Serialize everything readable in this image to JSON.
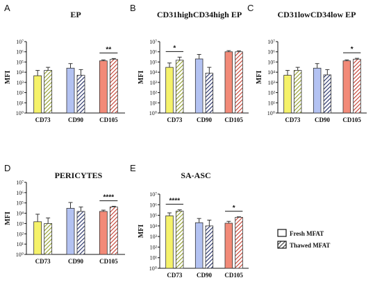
{
  "chart_data": [
    {
      "panel": "A",
      "title": "EP",
      "type": "bar",
      "log_scale": true,
      "ylabel": "MFI",
      "ylim": [
        1,
        10000000
      ],
      "yticks": [
        "10^0",
        "10^1",
        "10^2",
        "10^3",
        "10^4",
        "10^5",
        "10^6",
        "10^7"
      ],
      "categories": [
        "CD73",
        "CD90",
        "CD105"
      ],
      "series": [
        {
          "name": "Fresh MFAT",
          "values": [
            4500,
            25000,
            130000
          ],
          "errors_upper": [
            15000,
            70000,
            160000
          ]
        },
        {
          "name": "Thawed MFAT",
          "values": [
            15000,
            5000,
            180000
          ],
          "errors_upper": [
            30000,
            18000,
            220000
          ]
        }
      ],
      "significance": [
        {
          "category": "CD105",
          "label": "**"
        }
      ]
    },
    {
      "panel": "B",
      "title": "CD31highCD34high EP",
      "type": "bar",
      "log_scale": true,
      "ylabel": "MFI",
      "ylim": [
        1,
        10000000
      ],
      "yticks": [
        "10^0",
        "10^1",
        "10^2",
        "10^3",
        "10^4",
        "10^5",
        "10^6",
        "10^7"
      ],
      "categories": [
        "CD73",
        "CD90",
        "CD105"
      ],
      "series": [
        {
          "name": "Fresh MFAT",
          "values": [
            30000,
            200000,
            1000000
          ],
          "errors_upper": [
            80000,
            550000,
            1300000
          ]
        },
        {
          "name": "Thawed MFAT",
          "values": [
            150000,
            8000,
            1000000
          ],
          "errors_upper": [
            300000,
            30000,
            1250000
          ]
        }
      ],
      "significance": [
        {
          "category": "CD73",
          "label": "*"
        }
      ]
    },
    {
      "panel": "C",
      "title": "CD31lowCD34low EP",
      "type": "bar",
      "log_scale": true,
      "ylabel": "MFI",
      "ylim": [
        1,
        10000000
      ],
      "yticks": [
        "10^0",
        "10^1",
        "10^2",
        "10^3",
        "10^4",
        "10^5",
        "10^6",
        "10^7"
      ],
      "categories": [
        "CD73",
        "CD90",
        "CD105"
      ],
      "series": [
        {
          "name": "Fresh MFAT",
          "values": [
            5000,
            25000,
            130000
          ],
          "errors_upper": [
            15000,
            70000,
            160000
          ]
        },
        {
          "name": "Thawed MFAT",
          "values": [
            15000,
            5500,
            190000
          ],
          "errors_upper": [
            30000,
            18000,
            230000
          ]
        }
      ],
      "significance": [
        {
          "category": "CD105",
          "label": "*"
        }
      ]
    },
    {
      "panel": "D",
      "title": "PERICYTES",
      "type": "bar",
      "log_scale": true,
      "ylabel": "MFI",
      "ylim": [
        1,
        10000000
      ],
      "yticks": [
        "10^0",
        "10^1",
        "10^2",
        "10^3",
        "10^4",
        "10^5",
        "10^6",
        "10^7"
      ],
      "categories": [
        "CD73",
        "CD90",
        "CD105"
      ],
      "series": [
        {
          "name": "Fresh MFAT",
          "values": [
            1500,
            30000,
            15000
          ],
          "errors_upper": [
            8000,
            110000,
            20000
          ]
        },
        {
          "name": "Thawed MFAT",
          "values": [
            1000,
            15000,
            40000
          ],
          "errors_upper": [
            3500,
            40000,
            47000
          ]
        }
      ],
      "significance": [
        {
          "category": "CD105",
          "label": "****"
        }
      ]
    },
    {
      "panel": "E",
      "title": "SA-ASC",
      "type": "bar",
      "log_scale": true,
      "ylabel": "MFI",
      "ylim": [
        1,
        10000000
      ],
      "yticks": [
        "10^0",
        "10^1",
        "10^2",
        "10^3",
        "10^4",
        "10^5",
        "10^6",
        "10^7"
      ],
      "categories": [
        "CD73",
        "CD90",
        "CD105"
      ],
      "series": [
        {
          "name": "Fresh MFAT",
          "values": [
            90000,
            20000,
            18000
          ],
          "errors_upper": [
            170000,
            50000,
            27000
          ]
        },
        {
          "name": "Thawed MFAT",
          "values": [
            250000,
            10000,
            65000
          ],
          "errors_upper": [
            330000,
            35000,
            72000
          ]
        }
      ],
      "significance": [
        {
          "category": "CD73",
          "label": "****"
        },
        {
          "category": "CD105",
          "label": "*"
        }
      ]
    }
  ],
  "legend": [
    {
      "label": "Fresh MFAT",
      "pattern": "solid"
    },
    {
      "label": "Thawed MFAT",
      "pattern": "hatched"
    }
  ],
  "colors": {
    "CD73": "#f5f26a",
    "CD90": "#b3c2f2",
    "CD105": "#f28a78",
    "CD73_hatch": "#8e9b2a",
    "CD90_hatch": "#1f2a63",
    "CD105_hatch": "#c0392b"
  }
}
